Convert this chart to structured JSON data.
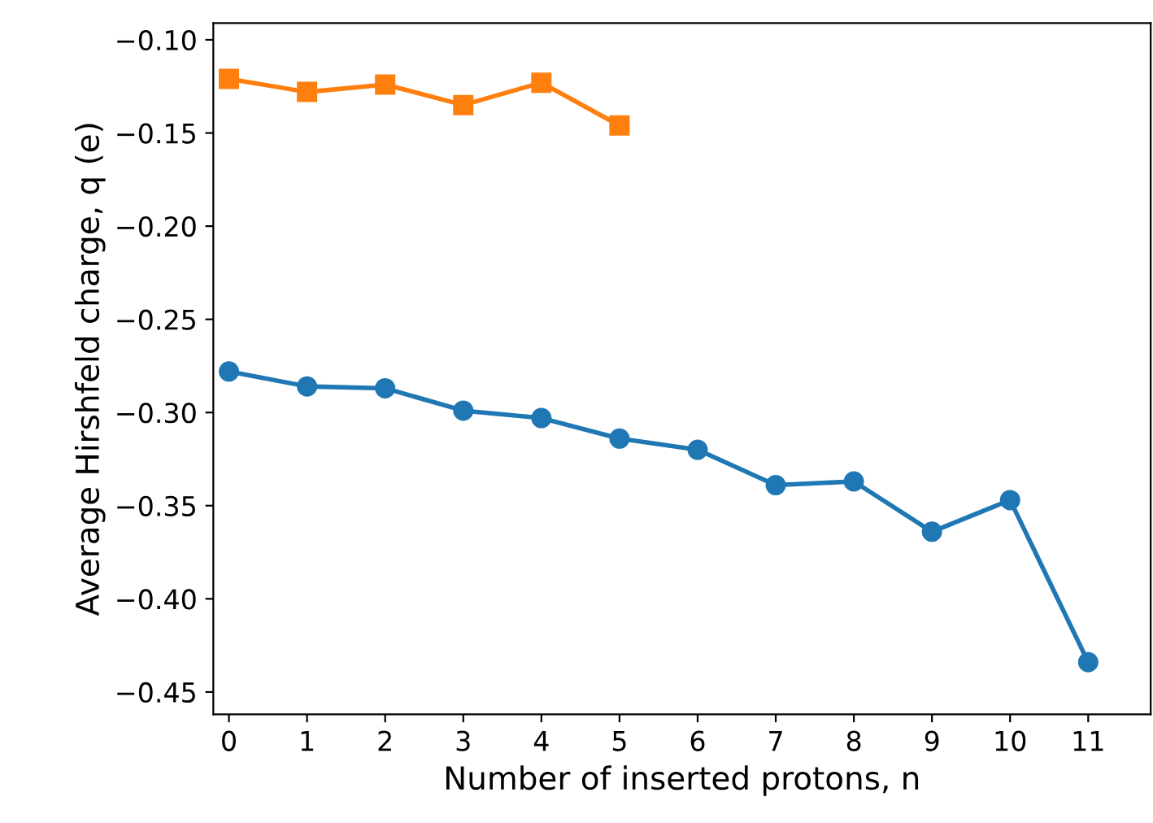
{
  "chart_data": {
    "type": "line",
    "xlabel": "Number of inserted protons, n",
    "ylabel": "Average Hirshfeld charge, q (e)",
    "x": [
      0,
      1,
      2,
      3,
      4,
      5,
      6,
      7,
      8,
      9,
      10,
      11
    ],
    "series": [
      {
        "color": "#1f77b4",
        "marker": "circle",
        "values": [
          -0.278,
          -0.286,
          -0.287,
          -0.299,
          -0.303,
          -0.314,
          -0.32,
          -0.339,
          -0.337,
          -0.364,
          -0.347,
          -0.434
        ]
      },
      {
        "color": "#ff7f0e",
        "marker": "square",
        "values": [
          -0.121,
          -0.128,
          -0.124,
          -0.135,
          -0.123,
          -0.146,
          null,
          null,
          null,
          null,
          null,
          null
        ]
      }
    ],
    "xlim": [
      -0.2,
      11.8
    ],
    "ylim": [
      -0.462,
      -0.091
    ],
    "xticks": [
      0,
      1,
      2,
      3,
      4,
      5,
      6,
      7,
      8,
      9,
      10,
      11
    ],
    "yticks": [
      {
        "value": -0.45,
        "label": "−0.45"
      },
      {
        "value": -0.4,
        "label": "−0.40"
      },
      {
        "value": -0.35,
        "label": "−0.35"
      },
      {
        "value": -0.3,
        "label": "−0.30"
      },
      {
        "value": -0.25,
        "label": "−0.25"
      },
      {
        "value": -0.2,
        "label": "−0.20"
      },
      {
        "value": -0.15,
        "label": "−0.15"
      },
      {
        "value": -0.1,
        "label": "−0.10"
      }
    ],
    "grid": false,
    "line_style": "solid"
  }
}
